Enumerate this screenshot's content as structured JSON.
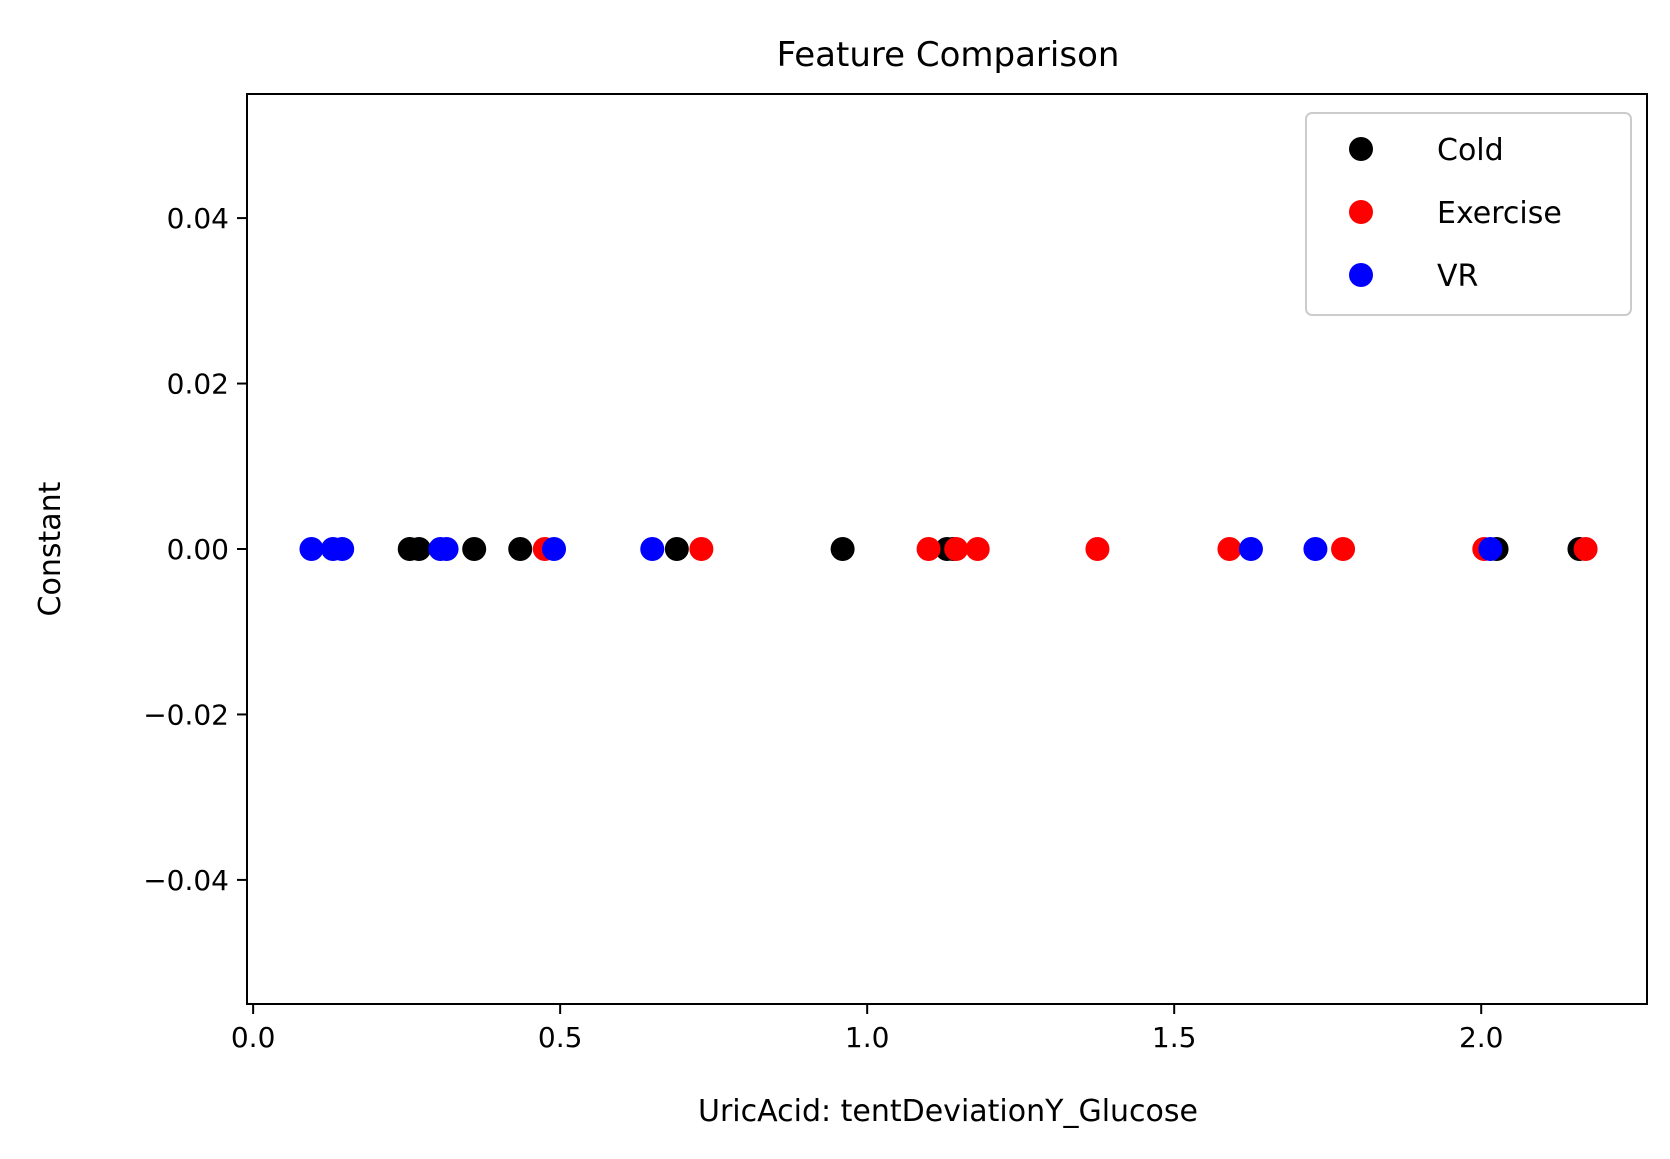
{
  "chart_data": {
    "type": "scatter",
    "title": "Feature Comparison",
    "xlabel": "UricAcid: tentDeviationY_Glucose",
    "ylabel": "Constant",
    "xlim": [
      -0.01,
      2.27
    ],
    "ylim": [
      -0.055,
      0.055
    ],
    "x_ticks": [
      0.0,
      0.5,
      1.0,
      1.5,
      2.0
    ],
    "x_tick_labels": [
      "0.0",
      "0.5",
      "1.0",
      "1.5",
      "2.0"
    ],
    "y_ticks": [
      0.04,
      0.02,
      0.0,
      -0.02,
      -0.04
    ],
    "y_tick_labels": [
      "0.04",
      "0.02",
      "0.00",
      "−0.02",
      "−0.04"
    ],
    "grid": false,
    "legend_position": "top-right",
    "series": [
      {
        "name": "Cold",
        "color": "#000000",
        "x": [
          0.255,
          0.27,
          0.36,
          0.435,
          0.69,
          0.96,
          1.13,
          1.14,
          2.025,
          2.16
        ],
        "y": [
          0,
          0,
          0,
          0,
          0,
          0,
          0,
          0,
          0,
          0
        ]
      },
      {
        "name": "Exercise",
        "color": "#ff0000",
        "x": [
          0.475,
          0.73,
          1.1,
          1.145,
          1.18,
          1.375,
          1.59,
          1.775,
          2.005,
          2.17
        ],
        "y": [
          0,
          0,
          0,
          0,
          0,
          0,
          0,
          0,
          0,
          0
        ]
      },
      {
        "name": "VR",
        "color": "#0000ff",
        "x": [
          0.095,
          0.13,
          0.145,
          0.305,
          0.315,
          0.49,
          0.65,
          1.625,
          1.73,
          2.015
        ],
        "y": [
          0,
          0,
          0,
          0,
          0,
          0,
          0,
          0,
          0,
          0
        ]
      }
    ]
  }
}
